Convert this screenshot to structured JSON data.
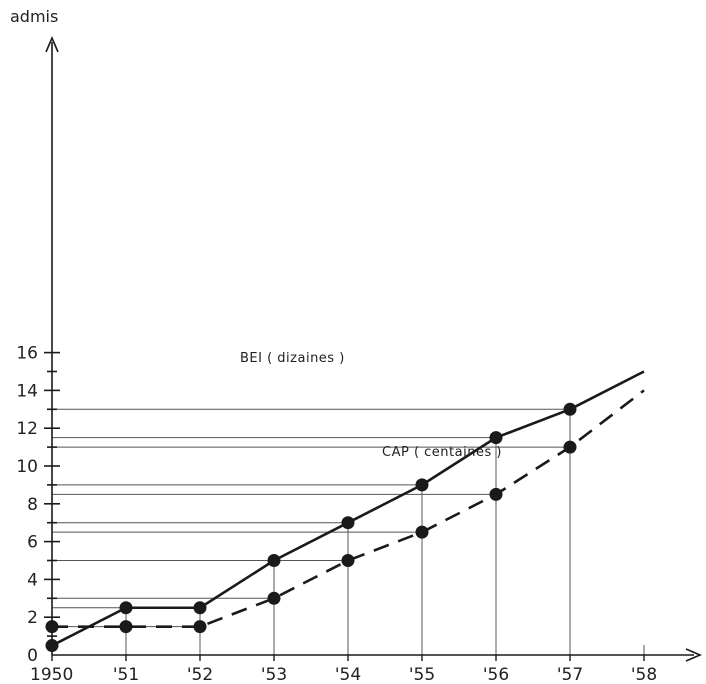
{
  "chart_data": {
    "type": "line",
    "ylabel": "admis",
    "xlabel": "",
    "x": [
      "1950",
      "'51",
      "'52",
      "'53",
      "'54",
      "'55",
      "'56",
      "'57",
      "'58"
    ],
    "ylim": [
      0,
      16
    ],
    "y_tick_labels": [
      "0",
      "2",
      "4",
      "6",
      "8",
      "10",
      "12",
      "14",
      "16"
    ],
    "grid": "horizontal reference lines and vertical drop lines at data points",
    "series": [
      {
        "name": "BEI ( dizaines )",
        "style": "solid",
        "color": "#1a1a1a",
        "points": [
          [
            0,
            0.5
          ],
          [
            1,
            2.5
          ],
          [
            2,
            2.5
          ],
          [
            3,
            5
          ],
          [
            4,
            7
          ],
          [
            5,
            9
          ],
          [
            6,
            11.5
          ],
          [
            7,
            13
          ],
          [
            8,
            15
          ]
        ],
        "markers": [
          true,
          true,
          true,
          true,
          true,
          true,
          true,
          true,
          false
        ]
      },
      {
        "name": "CAP ( centaines )",
        "style": "dashed",
        "color": "#1a1a1a",
        "points": [
          [
            0,
            1.5
          ],
          [
            1,
            1.5
          ],
          [
            2,
            1.5
          ],
          [
            3,
            3
          ],
          [
            4,
            5
          ],
          [
            5,
            6.5
          ],
          [
            6,
            8.5
          ],
          [
            7,
            11
          ],
          [
            8,
            14
          ]
        ],
        "markers": [
          true,
          true,
          true,
          true,
          true,
          true,
          true,
          true,
          false
        ]
      }
    ]
  }
}
